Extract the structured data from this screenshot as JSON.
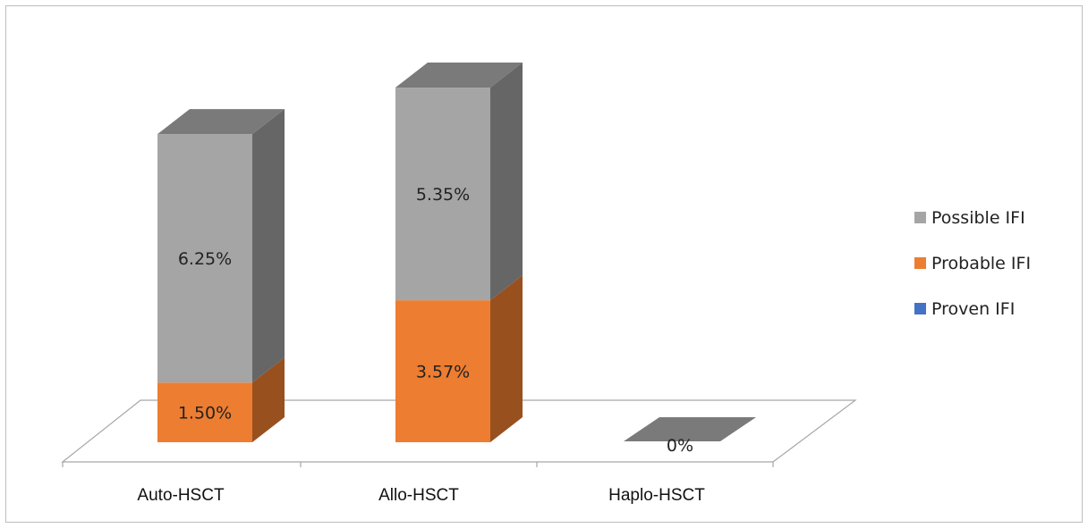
{
  "chart_data": {
    "type": "bar",
    "stacked": true,
    "three_d": true,
    "title": "",
    "xlabel": "",
    "ylabel": "",
    "categories": [
      "Auto-HSCT",
      "Allo-HSCT",
      "Haplo-HSCT"
    ],
    "series": [
      {
        "name": "Proven IFI",
        "color": "#4472c4",
        "values": [
          0,
          0,
          0
        ],
        "labels": [
          "",
          "",
          ""
        ]
      },
      {
        "name": "Probable IFI",
        "color": "#ed7d31",
        "values": [
          1.5,
          3.57,
          0
        ],
        "labels": [
          "1.50%",
          "3.57%",
          ""
        ]
      },
      {
        "name": "Possible IFI",
        "color": "#a5a5a5",
        "values": [
          6.25,
          5.35,
          0
        ],
        "labels": [
          "6.25%",
          "5.35%",
          "0%"
        ]
      }
    ],
    "legend": {
      "position": "right",
      "order": [
        "Possible IFI",
        "Probable IFI",
        "Proven IFI"
      ]
    },
    "gridlines": false
  }
}
